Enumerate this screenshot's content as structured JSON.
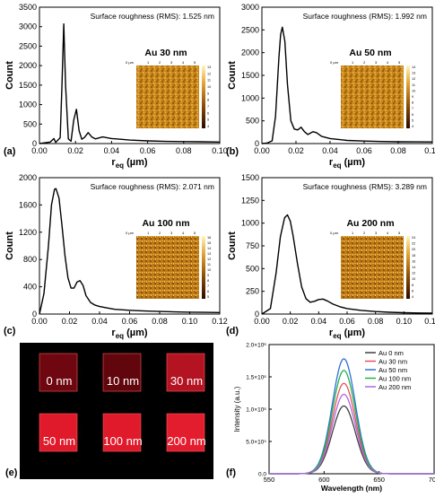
{
  "chart_data": [
    {
      "type": "line",
      "panel_label": "(a)",
      "annotation": "Surface roughness (RMS): 1.525 nm",
      "inset_label": "Au 30 nm",
      "inset_axis_unit": "0 µm",
      "inset_axis_ticks": [
        "1",
        "2",
        "3",
        "4",
        "5"
      ],
      "colorbar_ticks": [
        "13",
        "12",
        "11",
        "10",
        "9",
        "8",
        "7",
        "6",
        "5",
        "4"
      ],
      "xlabel_main": "r",
      "xlabel_sub": "eq",
      "xlabel_unit": " (µm)",
      "ylabel": "Count",
      "xlim": [
        0,
        0.1
      ],
      "ylim": [
        0,
        3500
      ],
      "xticks": [
        "0.00",
        "0.02",
        "0.04",
        "0.06",
        "0.08",
        "0.10"
      ],
      "yticks": [
        "0",
        "500",
        "1000",
        "1500",
        "2000",
        "2500",
        "3000",
        "3500"
      ],
      "x": [
        0,
        0.006,
        0.008,
        0.009,
        0.0115,
        0.0125,
        0.0135,
        0.0145,
        0.016,
        0.0175,
        0.019,
        0.0205,
        0.022,
        0.0235,
        0.025,
        0.027,
        0.029,
        0.031,
        0.035,
        0.04,
        0.045,
        0.05,
        0.06,
        0.07,
        0.08,
        0.09,
        0.1
      ],
      "y": [
        0,
        40,
        130,
        30,
        150,
        1500,
        3070,
        1500,
        120,
        60,
        600,
        880,
        330,
        110,
        160,
        280,
        170,
        120,
        170,
        130,
        110,
        90,
        70,
        55,
        50,
        45,
        40
      ]
    },
    {
      "type": "line",
      "panel_label": "(b)",
      "annotation": "Surface roughness (RMS): 1.992 nm",
      "inset_label": "Au 50 nm",
      "inset_axis_unit": "0 µm",
      "inset_axis_ticks": [
        "1",
        "2",
        "3",
        "4",
        "5"
      ],
      "colorbar_ticks": [
        "14",
        "13",
        "12",
        "11",
        "10",
        "9",
        "8",
        "7",
        "6",
        "5",
        "4"
      ],
      "xlabel_main": "r",
      "xlabel_sub": "eq",
      "xlabel_unit": " (µm)",
      "ylabel": "Count",
      "xlim": [
        0,
        0.1
      ],
      "ylim": [
        0,
        3000
      ],
      "xticks": [
        "0.00",
        "0.02",
        "0.04",
        "0.06",
        "0.08",
        "0.10"
      ],
      "yticks": [
        "0",
        "500",
        "1000",
        "1500",
        "2000",
        "2500",
        "3000"
      ],
      "x": [
        0,
        0.003,
        0.006,
        0.008,
        0.01,
        0.011,
        0.012,
        0.0135,
        0.015,
        0.017,
        0.019,
        0.021,
        0.023,
        0.025,
        0.027,
        0.03,
        0.032,
        0.035,
        0.04,
        0.045,
        0.05,
        0.06,
        0.07,
        0.08,
        0.09,
        0.1
      ],
      "y": [
        0,
        10,
        60,
        600,
        1900,
        2400,
        2560,
        2250,
        1300,
        500,
        320,
        300,
        360,
        260,
        200,
        260,
        240,
        160,
        110,
        90,
        70,
        55,
        45,
        40,
        38,
        35
      ]
    },
    {
      "type": "line",
      "panel_label": "(c)",
      "annotation": "Surface roughness (RMS): 2.071 nm",
      "inset_label": "Au 100 nm",
      "inset_axis_unit": "0 µm",
      "inset_axis_ticks": [
        "1",
        "2",
        "3",
        "4",
        "5"
      ],
      "colorbar_ticks": [
        "16",
        "15",
        "14",
        "13",
        "12",
        "11",
        "10",
        "9",
        "8",
        "7",
        "6",
        "5"
      ],
      "xlabel_main": "r",
      "xlabel_sub": "eq",
      "xlabel_unit": " (µm)",
      "ylabel": "Count",
      "xlim": [
        0,
        0.12
      ],
      "ylim": [
        0,
        2000
      ],
      "xticks": [
        "0.00",
        "0.02",
        "0.04",
        "0.06",
        "0.08",
        "0.10",
        "0.12"
      ],
      "yticks": [
        "0",
        "400",
        "800",
        "1200",
        "1600",
        "2000"
      ],
      "x": [
        0,
        0.003,
        0.006,
        0.008,
        0.01,
        0.011,
        0.013,
        0.015,
        0.017,
        0.019,
        0.021,
        0.023,
        0.025,
        0.027,
        0.029,
        0.031,
        0.034,
        0.037,
        0.04,
        0.045,
        0.05,
        0.06,
        0.07,
        0.08,
        0.09,
        0.1,
        0.11,
        0.12
      ],
      "y": [
        0,
        300,
        1000,
        1600,
        1830,
        1840,
        1700,
        1300,
        850,
        530,
        380,
        380,
        470,
        490,
        420,
        270,
        170,
        130,
        110,
        90,
        70,
        55,
        45,
        38,
        32,
        28,
        25,
        22
      ]
    },
    {
      "type": "line",
      "panel_label": "(d)",
      "annotation": "Surface roughness (RMS): 3.289 nm",
      "inset_label": "Au 200 nm",
      "inset_axis_unit": "0 µm",
      "inset_axis_ticks": [
        "1",
        "2",
        "3",
        "4",
        "5"
      ],
      "colorbar_ticks": [
        "24",
        "22",
        "20",
        "18",
        "16",
        "14",
        "12",
        "10",
        "8",
        "6",
        "4"
      ],
      "xlabel_main": "r",
      "xlabel_sub": "eq",
      "xlabel_unit": " (µm)",
      "ylabel": "Count",
      "xlim": [
        0,
        0.12
      ],
      "ylim": [
        0,
        1500
      ],
      "xticks": [
        "0.00",
        "0.02",
        "0.04",
        "0.06",
        "0.08",
        "0.10",
        "0.12"
      ],
      "yticks": [
        "0",
        "250",
        "500",
        "750",
        "1000",
        "1250",
        "1500"
      ],
      "x": [
        0,
        0.006,
        0.01,
        0.013,
        0.016,
        0.018,
        0.02,
        0.022,
        0.025,
        0.028,
        0.031,
        0.034,
        0.037,
        0.04,
        0.043,
        0.046,
        0.05,
        0.055,
        0.06,
        0.07,
        0.08,
        0.09,
        0.1,
        0.11,
        0.12
      ],
      "y": [
        0,
        60,
        450,
        850,
        1060,
        1090,
        1020,
        860,
        560,
        300,
        170,
        130,
        140,
        160,
        165,
        145,
        110,
        80,
        60,
        40,
        28,
        20,
        15,
        12,
        10
      ]
    },
    {
      "type": "line",
      "panel_label": "(f)",
      "xlabel": "Wavelength (nm)",
      "ylabel": "Intensity (a.u.)",
      "xlim": [
        550,
        700
      ],
      "ylim": [
        0,
        2000000
      ],
      "xticks": [
        "550",
        "600",
        "650",
        "700"
      ],
      "yticks": [
        "0.0",
        "5.0×10⁵",
        "1.0×10⁶",
        "1.5×10⁶",
        "2.0×10⁶"
      ],
      "peak_center": 618,
      "peak_sigma": 10.5,
      "legend_position": "top-right",
      "series": [
        {
          "name": "Au 0 nm",
          "color": "#404040",
          "peak": 1050000
        },
        {
          "name": "Au 30 nm",
          "color": "#e8525a",
          "peak": 1400000
        },
        {
          "name": "Au 50 nm",
          "color": "#2f6fd6",
          "peak": 1780000
        },
        {
          "name": "Au 100 nm",
          "color": "#22b24c",
          "peak": 1600000
        },
        {
          "name": "Au 200 nm",
          "color": "#b066e0",
          "peak": 1230000
        }
      ]
    }
  ],
  "photo_panel": {
    "panel_label": "(e)",
    "samples": [
      "0 nm",
      "10 nm",
      "30 nm",
      "50 nm",
      "100 nm",
      "200 nm"
    ],
    "sample_colors": [
      "#6e0710",
      "#62060d",
      "#b41422",
      "#e01a2b",
      "#e01a2b",
      "#e41d2e"
    ],
    "background_color": "#000000"
  }
}
